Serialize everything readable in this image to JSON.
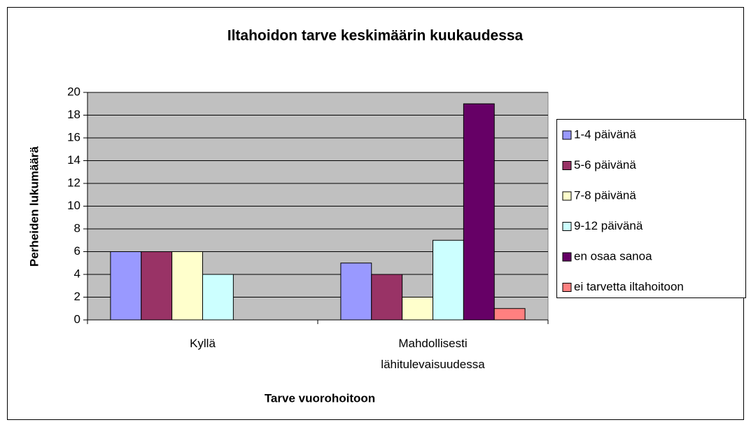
{
  "chart_data": {
    "type": "bar",
    "title": "Iltahoidon tarve keskimäärin kuukaudessa",
    "x_label": "Tarve vuorohoitoon",
    "y_label": "Perheiden lukumäärä",
    "categories": [
      "Kyllä",
      "Mahdollisesti lähitulevaisuudessa"
    ],
    "series": [
      {
        "name": "1-4 päivänä",
        "color": "#9999ff",
        "values": [
          6,
          5
        ]
      },
      {
        "name": "5-6 päivänä",
        "color": "#993366",
        "values": [
          6,
          4
        ]
      },
      {
        "name": "7-8 päivänä",
        "color": "#ffffcc",
        "values": [
          6,
          2
        ]
      },
      {
        "name": "9-12 päivänä",
        "color": "#ccffff",
        "values": [
          4,
          7
        ]
      },
      {
        "name": "en osaa sanoa",
        "color": "#660066",
        "values": [
          0,
          19
        ]
      },
      {
        "name": "ei tarvetta iltahoitoon",
        "color": "#ff8080",
        "values": [
          0,
          1
        ]
      }
    ],
    "ylim": [
      0,
      20
    ],
    "yticks": [
      0,
      2,
      4,
      6,
      8,
      10,
      12,
      14,
      16,
      18,
      20
    ],
    "grid": true,
    "legend": "right",
    "plot_background": "#c0c0c0"
  }
}
